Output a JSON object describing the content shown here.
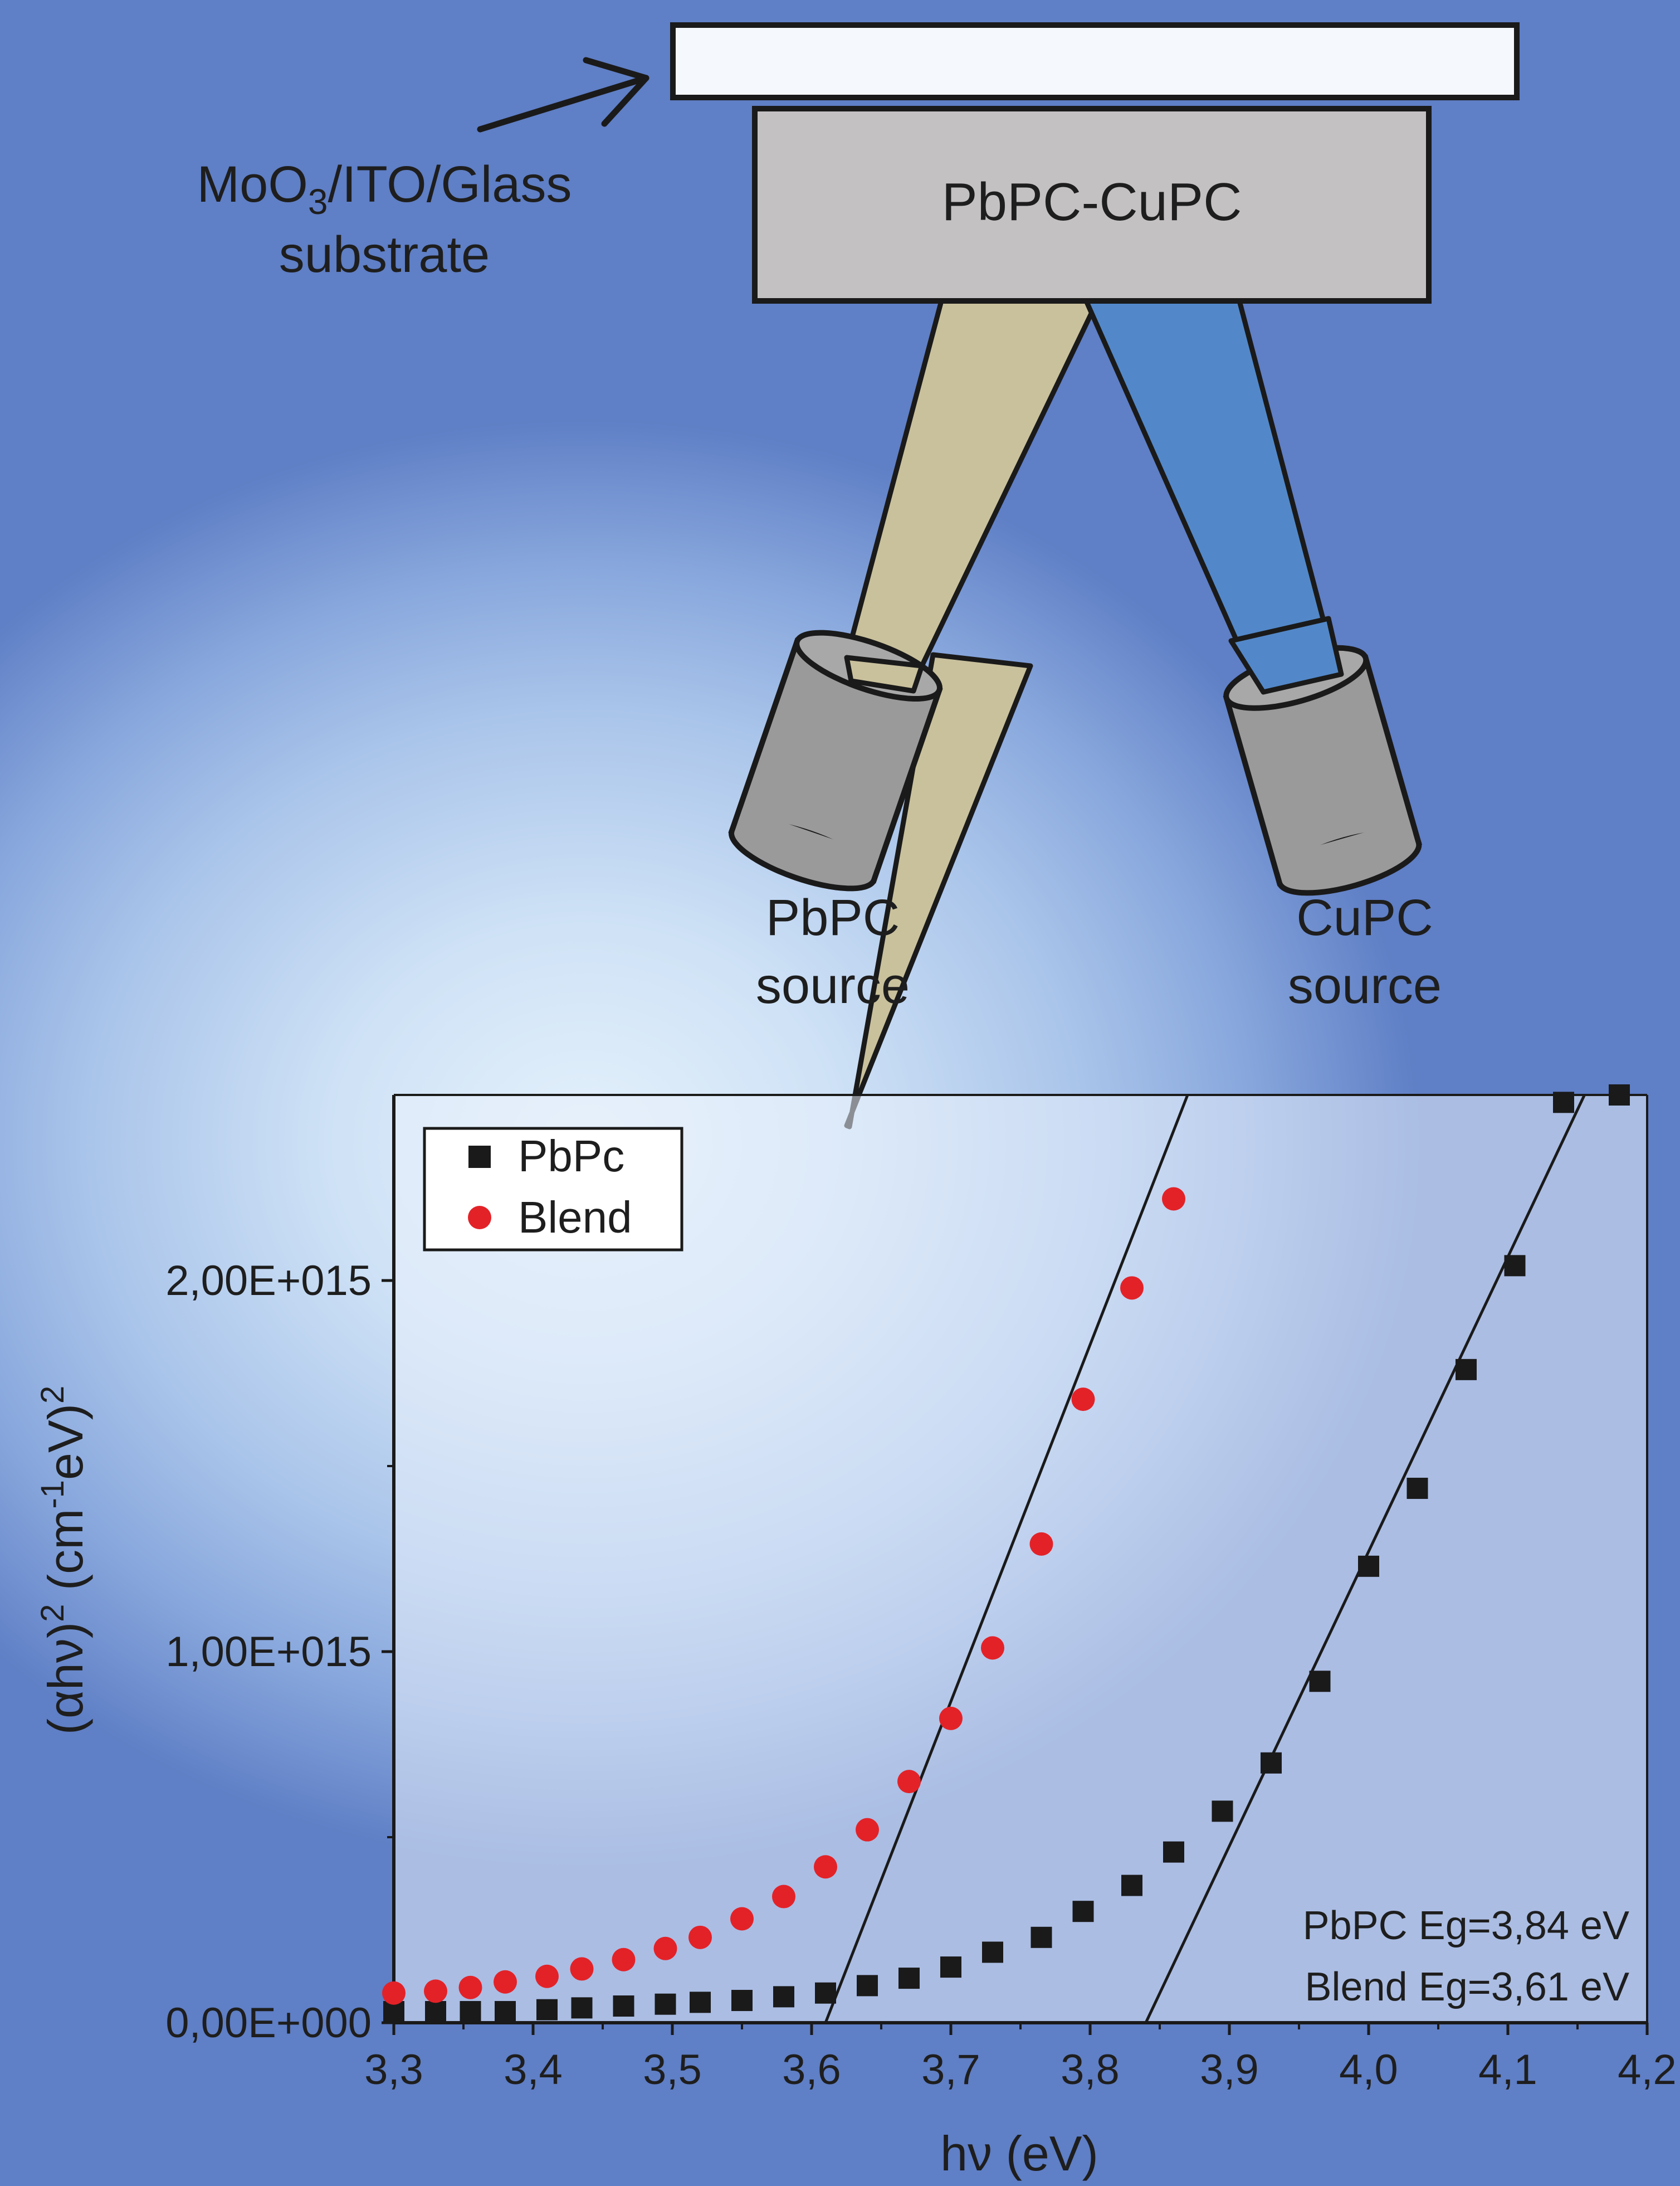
{
  "diagram": {
    "substrate_label_line1": "MoO",
    "substrate_label_sub": "3",
    "substrate_label_rest": "/ITO/Glass",
    "substrate_label_line2": "substrate",
    "film_label": "PbPC-CuPC",
    "source_left_line1": "PbPC",
    "source_left_line2": "source",
    "source_right_line1": "CuPC",
    "source_right_line2": "source",
    "colors": {
      "beam_left": "#c9c19c",
      "beam_right": "#5288c9",
      "film": "#c4c1c3",
      "substrate": "#f5f8fc",
      "crucible": "#9a9a9a"
    }
  },
  "chart_data": {
    "type": "scatter",
    "xlabel": "hν (eV)",
    "ylabel_parts": [
      "(αhν)",
      "2",
      " (cm",
      "-1",
      "eV)",
      "2"
    ],
    "xlim": [
      3.3,
      4.2
    ],
    "ylim": [
      0,
      2500000000000000.0
    ],
    "x_ticks": [
      3.3,
      3.4,
      3.5,
      3.6,
      3.7,
      3.8,
      3.9,
      4.0,
      4.1,
      4.2
    ],
    "x_tick_labels": [
      "3,3",
      "3,4",
      "3,5",
      "3,6",
      "3,7",
      "3,8",
      "3,9",
      "4,0",
      "4,1",
      "4,2"
    ],
    "y_ticks": [
      0,
      1000000000000000.0,
      2000000000000000.0
    ],
    "y_tick_labels": [
      "0,00E+000",
      "1,00E+015",
      "2,00E+015"
    ],
    "legend_position": "top-left",
    "series": [
      {
        "name": "PbPc",
        "marker": "square",
        "color": "#1a1a1a",
        "x": [
          3.3,
          3.33,
          3.355,
          3.38,
          3.41,
          3.435,
          3.465,
          3.495,
          3.52,
          3.55,
          3.58,
          3.61,
          3.64,
          3.67,
          3.7,
          3.73,
          3.765,
          3.795,
          3.83,
          3.86,
          3.895,
          3.93,
          3.965,
          4.0,
          4.035,
          4.07,
          4.105,
          4.14,
          4.18
        ],
        "y": [
          30000000000000.0,
          30000000000000.0,
          30000000000000.0,
          30000000000000.0,
          35000000000000.0,
          40000000000000.0,
          45000000000000.0,
          50000000000000.0,
          55000000000000.0,
          60000000000000.0,
          70000000000000.0,
          80000000000000.0,
          100000000000000.0,
          120000000000000.0,
          150000000000000.0,
          190000000000000.0,
          230000000000000.0,
          300000000000000.0,
          370000000000000.0,
          460000000000000.0,
          570000000000000.0,
          700000000000000.0,
          920000000000000.0,
          1230000000000000.0,
          1440000000000000.0,
          1760000000000000.0,
          2040000000000000.0,
          2480000000000000.0,
          2500000000000000.0
        ]
      },
      {
        "name": "Blend",
        "marker": "circle",
        "color": "#e32228",
        "x": [
          3.3,
          3.33,
          3.355,
          3.38,
          3.41,
          3.435,
          3.465,
          3.495,
          3.52,
          3.55,
          3.58,
          3.61,
          3.64,
          3.67,
          3.7,
          3.73,
          3.765,
          3.795,
          3.83,
          3.86
        ],
        "y": [
          80000000000000.0,
          85000000000000.0,
          95000000000000.0,
          110000000000000.0,
          125000000000000.0,
          145000000000000.0,
          170000000000000.0,
          200000000000000.0,
          230000000000000.0,
          280000000000000.0,
          340000000000000.0,
          420000000000000.0,
          520000000000000.0,
          650000000000000.0,
          820000000000000.0,
          1010000000000000.0,
          1290000000000000.0,
          1680000000000000.0,
          1980000000000000.0,
          2220000000000000.0
        ]
      }
    ],
    "fit_lines": [
      {
        "name": "Blend fit",
        "x": [
          3.61,
          3.87
        ],
        "y": [
          0,
          2500000000000000.0
        ]
      },
      {
        "name": "PbPc fit",
        "x": [
          3.84,
          4.155
        ],
        "y": [
          0,
          2500000000000000.0
        ]
      }
    ],
    "annotations": [
      "PbPC Eg=3,84 eV",
      "Blend Eg=3,61 eV"
    ]
  }
}
